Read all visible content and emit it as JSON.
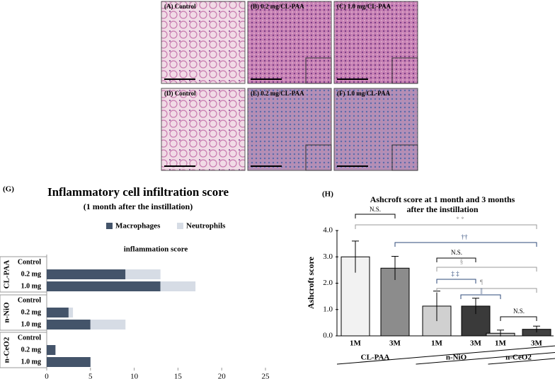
{
  "images": [
    {
      "label": "(A) Control"
    },
    {
      "label": "(B) 0.2 mg/CL-PAA"
    },
    {
      "label": "(C) 1.0 mg/CL-PAA"
    },
    {
      "label": "(D) Control"
    },
    {
      "label": "(E) 0.2 mg/CL-PAA"
    },
    {
      "label": "(F) 1.0 mg/CL-PAA"
    }
  ],
  "panel_labels": [
    "(G)",
    "(H)"
  ],
  "chart_data": [
    {
      "type": "hbar-stacked",
      "title": "Inflammatory cell infiltration score",
      "subtitle": "(1 month after the instillation)",
      "plot_title": "inflammation score",
      "categories": [
        "Control",
        "0.2 mg",
        "1.0 mg",
        "Control",
        "0.2 mg",
        "1.0 mg",
        "Control",
        "0.2 mg",
        "1.0 mg"
      ],
      "groups": [
        "CL-PAA",
        "n-NiO",
        "n-CeO2"
      ],
      "series": [
        {
          "name": "Macrophages",
          "color": "#44546a",
          "values": [
            0,
            9,
            13,
            0,
            2.5,
            5,
            0,
            1,
            5
          ]
        },
        {
          "name": "Neutrophils",
          "color": "#d6dce5",
          "values": [
            0,
            4,
            4,
            0,
            0.5,
            4,
            0,
            0,
            0
          ]
        }
      ],
      "xlim": [
        0,
        25
      ],
      "xticks": [
        0,
        5,
        10,
        15,
        20,
        25
      ],
      "legend": "top"
    },
    {
      "type": "bar-error",
      "title": [
        "Ashcroft score at 1 month and 3 months",
        "after the instillation"
      ],
      "y_label": "Ashcroft score",
      "categories": [
        "1M",
        "3M",
        "1M",
        "3M",
        "1M",
        "3M"
      ],
      "groups": [
        "CL-PAA",
        "n-NiO",
        "n-CeO2"
      ],
      "values": [
        3.0,
        2.57,
        1.13,
        1.13,
        0.1,
        0.25
      ],
      "errors": [
        0.6,
        0.45,
        0.57,
        0.3,
        0.12,
        0.12
      ],
      "colors": [
        "#f2f2f2",
        "#8c8c8c",
        "#d0d0d0",
        "#3a3a3a",
        "#bfbfbf",
        "#404040"
      ],
      "ylim": [
        0,
        4
      ],
      "yticks": [
        {
          "value": 0,
          "label": "0.0"
        },
        {
          "value": 1,
          "label": "1.0"
        },
        {
          "value": 2,
          "label": "2.0"
        },
        {
          "value": 3,
          "label": "3.0"
        },
        {
          "value": 4,
          "label": "4.0"
        }
      ],
      "annotations": [
        "N.S.",
        "* *",
        "††",
        "N.S.",
        "§",
        "‡ ‡",
        "¶",
        "||",
        "N.S."
      ]
    }
  ]
}
